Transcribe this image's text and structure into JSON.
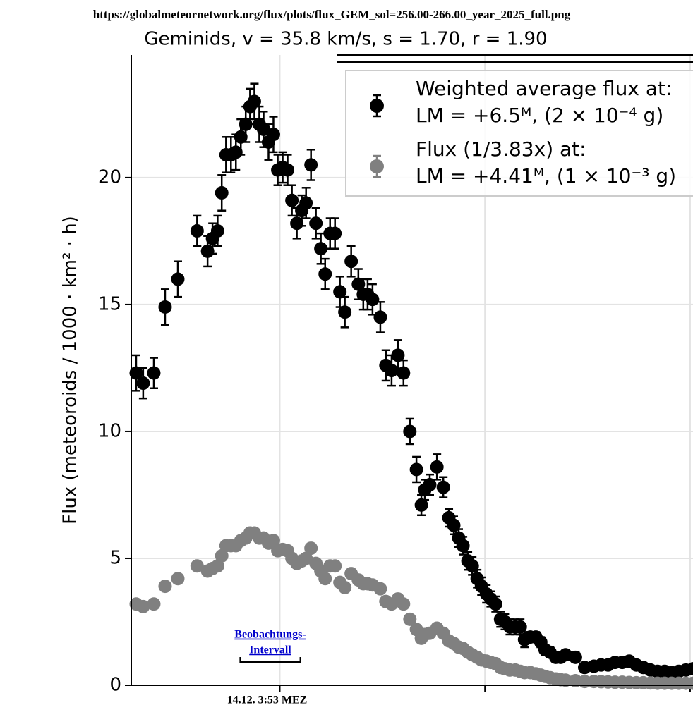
{
  "source_url": "https://globalmeteornetwork.org/flux/plots/flux_GEM_sol=256.00-266.00_year_2025_full.png",
  "chart_data": {
    "type": "errorbar-scatter",
    "title": "Geminids, v = 35.8 km/s, s = 1.70, r = 1.90",
    "y_label": "Flux (meteoroids / 1000 · km² · h)",
    "xlim": [
      261.276,
      264.014
    ],
    "ylim": [
      0,
      24.83
    ],
    "xticks": [
      {
        "value": 262,
        "label": "14.12. 3:53 MEZ"
      },
      263,
      264
    ],
    "yticks": [
      0,
      5,
      10,
      15,
      20
    ],
    "grid": true,
    "legend": "upper right",
    "annotation": {
      "text": [
        "Beobachtungs-",
        "Intervall"
      ],
      "color": "#0000cc",
      "x": [
        261.807,
        262.1
      ]
    },
    "x": [
      261.3,
      261.334,
      261.386,
      261.441,
      261.503,
      261.597,
      261.648,
      261.672,
      261.697,
      261.717,
      261.738,
      261.762,
      261.786,
      261.81,
      261.834,
      261.855,
      261.876,
      261.9,
      261.921,
      261.945,
      261.969,
      261.99,
      262.014,
      262.038,
      262.059,
      262.083,
      262.107,
      262.128,
      262.152,
      262.176,
      262.2,
      262.221,
      262.245,
      262.269,
      262.293,
      262.317,
      262.348,
      262.383,
      262.407,
      262.428,
      262.452,
      262.49,
      262.517,
      262.545,
      262.576,
      262.603,
      262.634,
      262.666,
      262.69,
      262.707,
      262.731,
      262.766,
      262.797,
      262.824,
      262.848,
      262.872,
      262.893,
      262.917,
      262.938,
      262.962,
      262.983,
      263.007,
      263.028,
      263.052,
      263.076,
      263.097,
      263.121,
      263.148,
      263.172,
      263.193,
      263.221,
      263.248,
      263.272,
      263.293,
      263.317,
      263.345,
      263.369,
      263.393,
      263.441,
      263.486,
      263.531,
      263.566,
      263.6,
      263.634,
      263.669,
      263.703,
      263.738,
      263.772,
      263.807,
      263.841,
      263.876,
      263.91,
      263.945,
      263.979,
      264.014
    ],
    "series": [
      {
        "name": "Weighted average flux at:\nLM = +6.5ᴹ, (2 × 10⁻⁴ g)",
        "color": "#000000",
        "values": [
          12.3,
          11.9,
          12.3,
          14.9,
          16.0,
          17.9,
          17.1,
          17.6,
          17.9,
          19.4,
          20.9,
          20.9,
          21.0,
          21.6,
          22.1,
          22.8,
          23.0,
          22.1,
          21.9,
          21.4,
          21.7,
          20.3,
          20.4,
          20.3,
          19.1,
          18.2,
          18.7,
          19.0,
          20.5,
          18.2,
          17.2,
          16.2,
          17.8,
          17.8,
          15.5,
          14.7,
          16.7,
          15.8,
          15.4,
          15.4,
          15.2,
          14.5,
          12.6,
          12.4,
          13.0,
          12.3,
          10.0,
          8.5,
          7.1,
          7.7,
          7.9,
          8.6,
          7.8,
          6.6,
          6.3,
          5.8,
          5.5,
          4.9,
          4.7,
          4.2,
          3.9,
          3.6,
          3.4,
          3.2,
          2.6,
          2.5,
          2.3,
          2.3,
          2.3,
          1.8,
          1.9,
          1.9,
          1.7,
          1.4,
          1.3,
          1.1,
          1.1,
          1.2,
          1.1,
          0.7,
          0.75,
          0.8,
          0.8,
          0.9,
          0.9,
          0.95,
          0.8,
          0.7,
          0.6,
          0.55,
          0.55,
          0.5,
          0.55,
          0.6,
          0.65
        ],
        "errors": [
          0.7,
          0.6,
          0.6,
          0.7,
          0.7,
          0.6,
          0.6,
          0.6,
          0.6,
          0.7,
          0.7,
          0.7,
          0.7,
          0.7,
          0.7,
          0.7,
          0.7,
          0.7,
          0.7,
          0.7,
          0.7,
          0.6,
          0.6,
          0.6,
          0.6,
          0.6,
          0.6,
          0.6,
          0.6,
          0.6,
          0.6,
          0.6,
          0.6,
          0.6,
          0.6,
          0.6,
          0.6,
          0.6,
          0.6,
          0.6,
          0.6,
          0.6,
          0.6,
          0.6,
          0.6,
          0.5,
          0.5,
          0.5,
          0.4,
          0.4,
          0.4,
          0.5,
          0.4,
          0.35,
          0.35,
          0.35,
          0.35,
          0.35,
          0.35,
          0.35,
          0.35,
          0.35,
          0.3,
          0.3,
          0.3,
          0.3,
          0.3,
          0.3,
          0.3,
          0.3,
          0.2,
          0.2,
          0.2,
          0.2,
          0.2,
          0.2,
          0.2,
          0.2,
          0.2,
          0.15,
          0.15,
          0.15,
          0.15,
          0.15,
          0.15,
          0.15,
          0.15,
          0.15,
          0.15,
          0.15,
          0.15,
          0.15,
          0.15,
          0.15,
          0.15
        ]
      },
      {
        "name": "Flux (1/3.83x) at:\nLM = +4.41ᴹ, (1 × 10⁻³ g)",
        "color": "#808080",
        "values": [
          3.2,
          3.1,
          3.2,
          3.9,
          4.2,
          4.7,
          4.5,
          4.6,
          4.7,
          5.1,
          5.5,
          5.5,
          5.5,
          5.7,
          5.8,
          6.0,
          6.0,
          5.8,
          5.8,
          5.6,
          5.7,
          5.3,
          5.35,
          5.3,
          5.0,
          4.8,
          4.9,
          5.0,
          5.4,
          4.8,
          4.5,
          4.2,
          4.7,
          4.7,
          4.05,
          3.85,
          4.4,
          4.15,
          4.0,
          4.0,
          3.95,
          3.8,
          3.3,
          3.2,
          3.4,
          3.2,
          2.6,
          2.2,
          1.85,
          2.0,
          2.05,
          2.25,
          2.05,
          1.75,
          1.65,
          1.5,
          1.45,
          1.3,
          1.2,
          1.1,
          1.0,
          0.95,
          0.9,
          0.85,
          0.7,
          0.65,
          0.6,
          0.6,
          0.55,
          0.5,
          0.5,
          0.45,
          0.4,
          0.35,
          0.3,
          0.25,
          0.22,
          0.2,
          0.18,
          0.15,
          0.15,
          0.14,
          0.13,
          0.12,
          0.12,
          0.11,
          0.1,
          0.1,
          0.09,
          0.08,
          0.08,
          0.08,
          0.08,
          0.08,
          0.08
        ]
      }
    ]
  }
}
